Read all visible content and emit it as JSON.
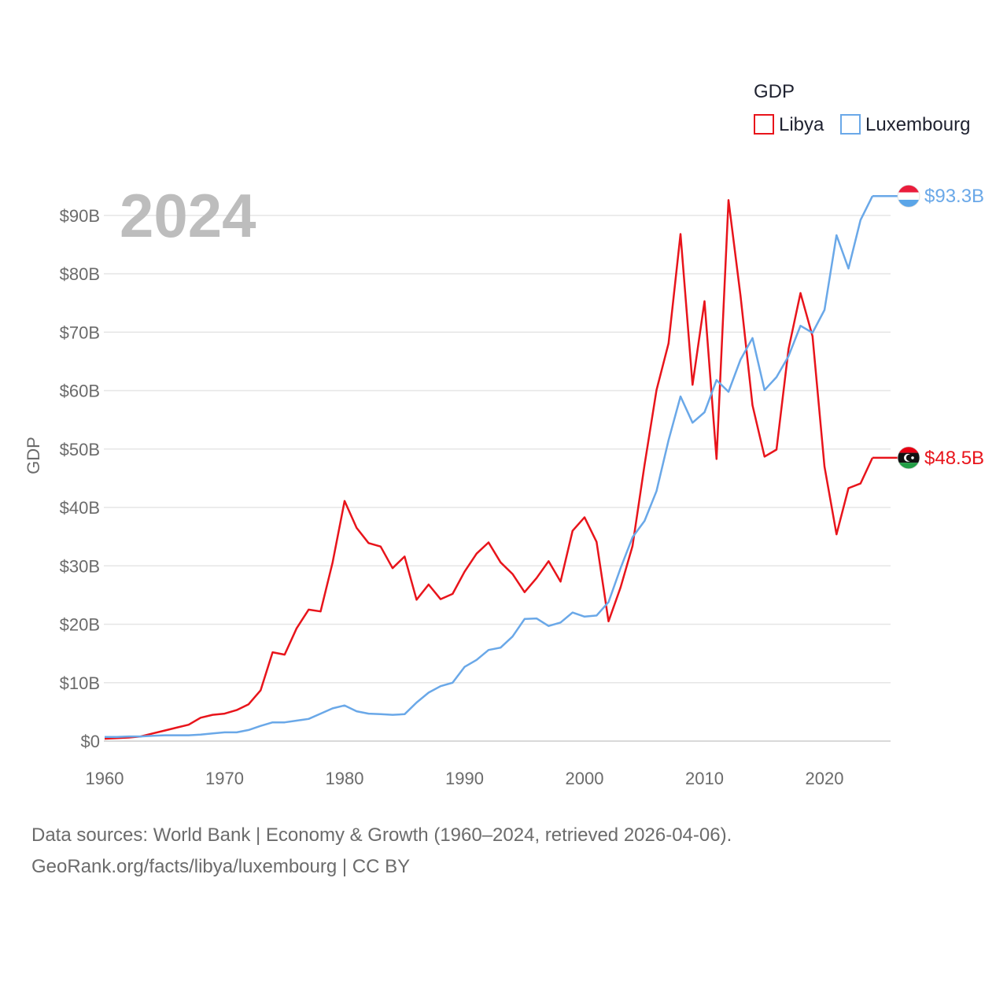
{
  "chart_data": {
    "type": "line",
    "title": "GDP",
    "ylabel": "GDP",
    "xlabel": "",
    "current_year": "2024",
    "xlim": [
      1960,
      2024
    ],
    "ylim": [
      0,
      95
    ],
    "x_ticks": [
      1960,
      1970,
      1980,
      1990,
      2000,
      2010,
      2020
    ],
    "y_ticks": [
      {
        "value": 0,
        "label": "$0"
      },
      {
        "value": 10,
        "label": "$10B"
      },
      {
        "value": 20,
        "label": "$20B"
      },
      {
        "value": 30,
        "label": "$30B"
      },
      {
        "value": 40,
        "label": "$40B"
      },
      {
        "value": 50,
        "label": "$50B"
      },
      {
        "value": 60,
        "label": "$60B"
      },
      {
        "value": 70,
        "label": "$70B"
      },
      {
        "value": 80,
        "label": "$80B"
      },
      {
        "value": 90,
        "label": "$90B"
      }
    ],
    "legend_position": "top-right",
    "x": [
      1960,
      1961,
      1962,
      1963,
      1964,
      1965,
      1966,
      1967,
      1968,
      1969,
      1970,
      1971,
      1972,
      1973,
      1974,
      1975,
      1976,
      1977,
      1978,
      1979,
      1980,
      1981,
      1982,
      1983,
      1984,
      1985,
      1986,
      1987,
      1988,
      1989,
      1990,
      1991,
      1992,
      1993,
      1994,
      1995,
      1996,
      1997,
      1998,
      1999,
      2000,
      2001,
      2002,
      2003,
      2004,
      2005,
      2006,
      2007,
      2008,
      2009,
      2010,
      2011,
      2012,
      2013,
      2014,
      2015,
      2016,
      2017,
      2018,
      2019,
      2020,
      2021,
      2022,
      2023,
      2024
    ],
    "series": [
      {
        "name": "Libya",
        "color": "#e8141b",
        "end_label": "$48.5B",
        "flag": "libya-flag-icon",
        "values": [
          0.4,
          0.5,
          0.6,
          0.8,
          1.3,
          1.8,
          2.3,
          2.8,
          4.0,
          4.5,
          4.7,
          5.3,
          6.3,
          8.7,
          15.2,
          14.8,
          19.3,
          22.5,
          22.2,
          30.6,
          41.1,
          36.5,
          33.9,
          33.3,
          29.6,
          31.6,
          24.2,
          26.8,
          24.3,
          25.2,
          29.0,
          32.1,
          34.0,
          30.6,
          28.6,
          25.5,
          27.9,
          30.8,
          27.3,
          36.0,
          38.3,
          34.1,
          20.5,
          26.3,
          33.4,
          47.3,
          60.1,
          68.1,
          86.8,
          61.0,
          75.3,
          48.3,
          92.6,
          76.2,
          57.5,
          48.7,
          49.9,
          67.1,
          76.7,
          69.3,
          47.0,
          35.4,
          43.3,
          44.1,
          48.5
        ]
      },
      {
        "name": "Luxembourg",
        "color": "#6aa8e8",
        "end_label": "$93.3B",
        "flag": "luxembourg-flag-icon",
        "values": [
          0.7,
          0.7,
          0.8,
          0.8,
          0.9,
          1.0,
          1.0,
          1.0,
          1.1,
          1.3,
          1.5,
          1.5,
          1.9,
          2.6,
          3.2,
          3.2,
          3.5,
          3.8,
          4.7,
          5.6,
          6.1,
          5.1,
          4.7,
          4.6,
          4.5,
          4.6,
          6.6,
          8.3,
          9.4,
          10.0,
          12.7,
          13.9,
          15.6,
          16.0,
          17.9,
          20.9,
          21.0,
          19.7,
          20.3,
          22.0,
          21.3,
          21.5,
          23.8,
          29.6,
          34.9,
          37.7,
          42.8,
          51.5,
          59.0,
          54.5,
          56.3,
          61.8,
          59.8,
          65.3,
          69.0,
          60.1,
          62.3,
          65.9,
          71.1,
          69.9,
          73.8,
          86.6,
          80.9,
          89.2,
          93.3
        ]
      }
    ]
  },
  "source_note": {
    "line1": "Data sources: World Bank | Economy & Growth (1960–2024, retrieved 2026-04-06).",
    "line2": "GeoRank.org/facts/libya/luxembourg | CC BY"
  }
}
